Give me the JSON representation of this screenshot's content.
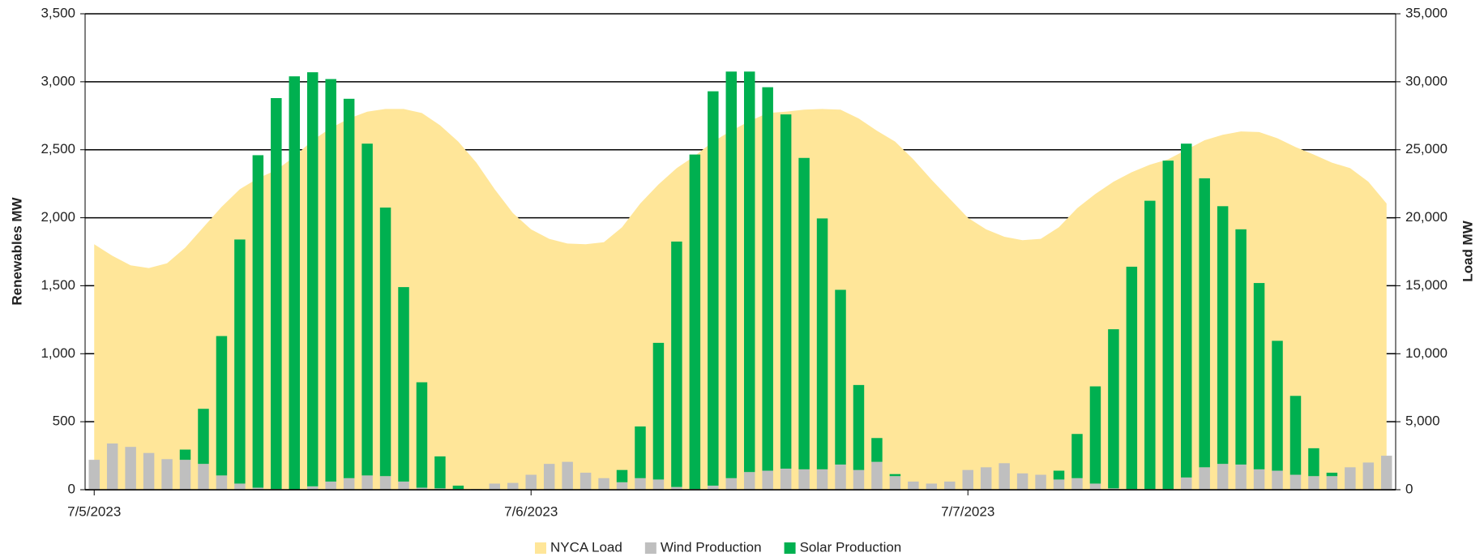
{
  "chart_data": {
    "type": "bar",
    "stacked": true,
    "categories": [
      "7/5/2023",
      null,
      null,
      null,
      null,
      null,
      null,
      null,
      null,
      null,
      null,
      null,
      null,
      null,
      null,
      null,
      null,
      null,
      null,
      null,
      null,
      null,
      null,
      null,
      "7/6/2023",
      null,
      null,
      null,
      null,
      null,
      null,
      null,
      null,
      null,
      null,
      null,
      null,
      null,
      null,
      null,
      null,
      null,
      null,
      null,
      null,
      null,
      null,
      null,
      "7/7/2023",
      null,
      null,
      null,
      null,
      null,
      null,
      null,
      null,
      null,
      null,
      null,
      null,
      null,
      null,
      null,
      null,
      null,
      null,
      null,
      null,
      null,
      null,
      null
    ],
    "y_label": "Renewables MW",
    "y2_label": "Load MW",
    "ylim": [
      0,
      3500
    ],
    "yticks": [
      0,
      500,
      {
        "value": 1000,
        "label": "1,000"
      },
      {
        "value": 1500,
        "label": "1,500"
      },
      {
        "value": 2000,
        "label": "2,000"
      },
      {
        "value": 2500,
        "label": "2,500"
      },
      {
        "value": 3000,
        "label": "3,000"
      },
      {
        "value": 3500,
        "label": "3,500"
      }
    ],
    "y2lim": [
      0,
      35000
    ],
    "y2ticks": [
      0,
      {
        "value": 5000,
        "label": "5,000"
      },
      {
        "value": 10000,
        "label": "10,000"
      },
      {
        "value": 15000,
        "label": "15,000"
      },
      {
        "value": 20000,
        "label": "20,000"
      },
      {
        "value": 25000,
        "label": "25,000"
      },
      {
        "value": 30000,
        "label": "30,000"
      },
      {
        "value": 35000,
        "label": "35,000"
      }
    ],
    "grid": true,
    "legend": "bottom",
    "series": [
      {
        "name": "NYCA Load",
        "type": "area",
        "axis": "y2",
        "color": "#ffe699",
        "values": [
          18050,
          17200,
          16500,
          16300,
          16650,
          17800,
          19300,
          20800,
          22100,
          22900,
          23500,
          24500,
          25700,
          26600,
          27300,
          27800,
          28000,
          28000,
          27700,
          26800,
          25600,
          24050,
          22100,
          20350,
          19150,
          18450,
          18100,
          18050,
          18200,
          19300,
          21050,
          22450,
          23650,
          24550,
          25600,
          26400,
          27100,
          27700,
          27800,
          27950,
          28000,
          27950,
          27300,
          26400,
          25600,
          24300,
          22800,
          21400,
          20000,
          19150,
          18600,
          18350,
          18450,
          19300,
          20700,
          21750,
          22650,
          23350,
          23900,
          24300,
          25000,
          25700,
          26100,
          26350,
          26300,
          25850,
          25200,
          24650,
          24050,
          23650,
          22650,
          21050
        ]
      },
      {
        "name": "Wind Production",
        "type": "bar",
        "color": "#bfbfbf",
        "values": [
          220,
          340,
          315,
          270,
          225,
          220,
          190,
          105,
          45,
          15,
          5,
          0,
          25,
          60,
          85,
          105,
          100,
          60,
          15,
          10,
          5,
          5,
          45,
          50,
          110,
          190,
          205,
          125,
          85,
          55,
          85,
          75,
          20,
          5,
          30,
          85,
          130,
          140,
          155,
          150,
          150,
          185,
          145,
          205,
          100,
          60,
          45,
          60,
          145,
          165,
          195,
          120,
          110,
          75,
          85,
          45,
          10,
          5,
          5,
          5,
          90,
          165,
          190,
          185,
          150,
          140,
          110,
          100,
          100,
          165,
          200,
          250
        ]
      },
      {
        "name": "Solar Production",
        "type": "bar",
        "color": "#00b050",
        "values": [
          0,
          0,
          0,
          0,
          0,
          75,
          405,
          1025,
          1795,
          2445,
          2875,
          3040,
          3045,
          2960,
          2790,
          2440,
          1975,
          1430,
          775,
          235,
          25,
          0,
          0,
          0,
          0,
          0,
          0,
          0,
          0,
          90,
          380,
          1005,
          1805,
          2460,
          2900,
          2990,
          2945,
          2820,
          2605,
          2290,
          1845,
          1285,
          625,
          175,
          15,
          0,
          0,
          0,
          0,
          0,
          0,
          0,
          0,
          65,
          325,
          715,
          1170,
          1635,
          2120,
          2415,
          2455,
          2125,
          1895,
          1730,
          1370,
          955,
          580,
          205,
          25,
          0,
          0,
          0
        ]
      }
    ]
  }
}
